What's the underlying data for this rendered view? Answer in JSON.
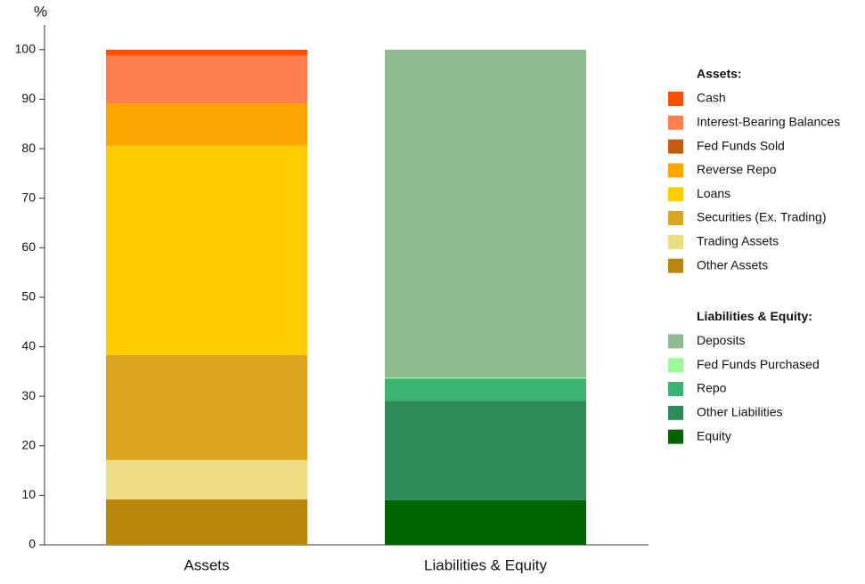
{
  "chart_data": {
    "type": "stacked-bar",
    "y_label": "%",
    "categories": [
      "Assets",
      "Liabilities & Equity"
    ],
    "ylim": [
      0,
      105
    ],
    "yticks": [
      0,
      10,
      20,
      30,
      40,
      50,
      60,
      70,
      80,
      90,
      100
    ],
    "groups": [
      {
        "title": "Assets:",
        "series": [
          {
            "name": "Cash",
            "color": "#ff4f00",
            "values": [
              1.2,
              null
            ]
          },
          {
            "name": "Interest-Bearing Balances",
            "color": "#ff7f50",
            "values": [
              9.5,
              null
            ]
          },
          {
            "name": "Fed Funds Sold",
            "color": "#c85a10",
            "values": [
              0.1,
              null
            ]
          },
          {
            "name": "Reverse Repo",
            "color": "#ffa500",
            "values": [
              8.6,
              null
            ]
          },
          {
            "name": "Loans",
            "color": "#ffcc00",
            "values": [
              42.3,
              null
            ]
          },
          {
            "name": "Securities (Ex. Trading)",
            "color": "#daa520",
            "values": [
              21.2,
              null
            ]
          },
          {
            "name": "Trading Assets",
            "color": "#eedc82",
            "values": [
              7.9,
              null
            ]
          },
          {
            "name": "Other Assets",
            "color": "#b8860b",
            "values": [
              9.2,
              null
            ]
          }
        ]
      },
      {
        "title": "Liabilities & Equity:",
        "series": [
          {
            "name": "Deposits",
            "color": "#8fbc8f",
            "values": [
              null,
              66.2
            ]
          },
          {
            "name": "Fed Funds Purchased",
            "color": "#98fb98",
            "values": [
              null,
              0.2
            ]
          },
          {
            "name": "Repo",
            "color": "#3cb371",
            "values": [
              null,
              4.5
            ]
          },
          {
            "name": "Other Liabilities",
            "color": "#2e8b57",
            "values": [
              null,
              20.1
            ]
          },
          {
            "name": "Equity",
            "color": "#006400",
            "values": [
              null,
              9.0
            ]
          }
        ]
      }
    ]
  }
}
